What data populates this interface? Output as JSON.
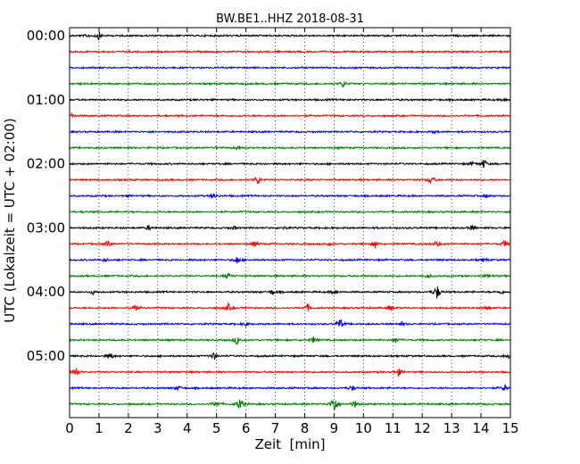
{
  "chart_data": {
    "type": "line",
    "title": "BW.BE1..HHZ 2018-08-31",
    "xlabel": "Zeit  [min]",
    "ylabel": "UTC (Lokalzeit = UTC + 02:00)",
    "xlim": [
      0,
      15
    ],
    "xticks": [
      "0",
      "1",
      "2",
      "3",
      "4",
      "5",
      "6",
      "7",
      "8",
      "9",
      "10",
      "11",
      "12",
      "13",
      "14",
      "15"
    ],
    "yticks": [
      {
        "label": "00:00",
        "row": 0
      },
      {
        "label": "01:00",
        "row": 4
      },
      {
        "label": "02:00",
        "row": 8
      },
      {
        "label": "03:00",
        "row": 12
      },
      {
        "label": "04:00",
        "row": 16
      },
      {
        "label": "05:00",
        "row": 20
      }
    ],
    "grid": "vertical dotted",
    "trace_interval_min": 15,
    "colors": [
      "#000000",
      "#ff0000",
      "#0000ff",
      "#008000"
    ],
    "series": [
      {
        "start": "00:00",
        "events": [
          {
            "t": 1.0,
            "amp": 0.5
          },
          {
            "t": 0.6,
            "amp": 0.15
          }
        ]
      },
      {
        "start": "00:15",
        "events": []
      },
      {
        "start": "00:30",
        "events": []
      },
      {
        "start": "00:45",
        "events": [
          {
            "t": 9.3,
            "amp": 0.45
          }
        ]
      },
      {
        "start": "01:00",
        "events": [
          {
            "t": 14.8,
            "amp": 0.15
          }
        ]
      },
      {
        "start": "01:15",
        "events": [
          {
            "t": 0.05,
            "amp": 0.3
          }
        ]
      },
      {
        "start": "01:30",
        "events": [
          {
            "t": 12.4,
            "amp": 0.15
          }
        ]
      },
      {
        "start": "01:45",
        "events": [
          {
            "t": 5.0,
            "amp": 0.15
          },
          {
            "t": 5.7,
            "amp": 0.15
          }
        ]
      },
      {
        "start": "02:00",
        "events": [
          {
            "t": 14.1,
            "amp": 0.6
          },
          {
            "t": 13.7,
            "amp": 0.2
          }
        ]
      },
      {
        "start": "02:15",
        "events": [
          {
            "t": 6.4,
            "amp": 0.6
          },
          {
            "t": 12.3,
            "amp": 0.6
          }
        ]
      },
      {
        "start": "02:30",
        "events": [
          {
            "t": 4.9,
            "amp": 0.45
          },
          {
            "t": 14.2,
            "amp": 0.2
          },
          {
            "t": 2.0,
            "amp": 0.1
          }
        ]
      },
      {
        "start": "02:45",
        "events": []
      },
      {
        "start": "03:00",
        "events": [
          {
            "t": 2.7,
            "amp": 0.3
          },
          {
            "t": 5.6,
            "amp": 0.2
          },
          {
            "t": 13.7,
            "amp": 0.3
          },
          {
            "t": 7.3,
            "amp": 0.1
          }
        ]
      },
      {
        "start": "03:15",
        "events": [
          {
            "t": 1.3,
            "amp": 0.4
          },
          {
            "t": 6.3,
            "amp": 0.3
          },
          {
            "t": 10.4,
            "amp": 0.5
          },
          {
            "t": 12.5,
            "amp": 0.4
          },
          {
            "t": 14.8,
            "amp": 0.5
          },
          {
            "t": 8.8,
            "amp": 0.2
          }
        ]
      },
      {
        "start": "03:30",
        "events": [
          {
            "t": 1.2,
            "amp": 0.25
          },
          {
            "t": 5.7,
            "amp": 0.5
          },
          {
            "t": 14.1,
            "amp": 0.25
          }
        ]
      },
      {
        "start": "03:45",
        "events": [
          {
            "t": 5.4,
            "amp": 0.4
          },
          {
            "t": 12.2,
            "amp": 0.3
          },
          {
            "t": 14.3,
            "amp": 0.25
          }
        ]
      },
      {
        "start": "04:00",
        "events": [
          {
            "t": 0.8,
            "amp": 0.25
          },
          {
            "t": 6.9,
            "amp": 0.35
          },
          {
            "t": 9.0,
            "amp": 0.3
          },
          {
            "t": 12.5,
            "amp": 0.9
          },
          {
            "t": 14.7,
            "amp": 0.25
          }
        ]
      },
      {
        "start": "04:15",
        "events": [
          {
            "t": 2.2,
            "amp": 0.6
          },
          {
            "t": 5.4,
            "amp": 0.5
          },
          {
            "t": 8.1,
            "amp": 0.45
          },
          {
            "t": 10.9,
            "amp": 0.3
          },
          {
            "t": 14.2,
            "amp": 0.3
          }
        ]
      },
      {
        "start": "04:30",
        "events": [
          {
            "t": 9.2,
            "amp": 0.8
          },
          {
            "t": 6.0,
            "amp": 0.3
          },
          {
            "t": 11.3,
            "amp": 0.25
          }
        ]
      },
      {
        "start": "04:45",
        "events": [
          {
            "t": 5.7,
            "amp": 0.6
          },
          {
            "t": 8.3,
            "amp": 0.4
          },
          {
            "t": 11.1,
            "amp": 0.35
          }
        ]
      },
      {
        "start": "05:00",
        "events": [
          {
            "t": 1.4,
            "amp": 0.35
          },
          {
            "t": 4.9,
            "amp": 0.55
          },
          {
            "t": 14.95,
            "amp": 0.4
          }
        ]
      },
      {
        "start": "05:15",
        "events": [
          {
            "t": 0.2,
            "amp": 0.7
          },
          {
            "t": 11.2,
            "amp": 0.45
          }
        ]
      },
      {
        "start": "05:30",
        "events": [
          {
            "t": 3.7,
            "amp": 0.3
          },
          {
            "t": 9.6,
            "amp": 0.4
          },
          {
            "t": 14.8,
            "amp": 0.45
          }
        ]
      },
      {
        "start": "05:45",
        "events": [
          {
            "t": 5.8,
            "amp": 1.0
          },
          {
            "t": 9.0,
            "amp": 1.4
          },
          {
            "t": 5.0,
            "amp": 0.5
          },
          {
            "t": 9.7,
            "amp": 0.5
          }
        ]
      }
    ]
  }
}
